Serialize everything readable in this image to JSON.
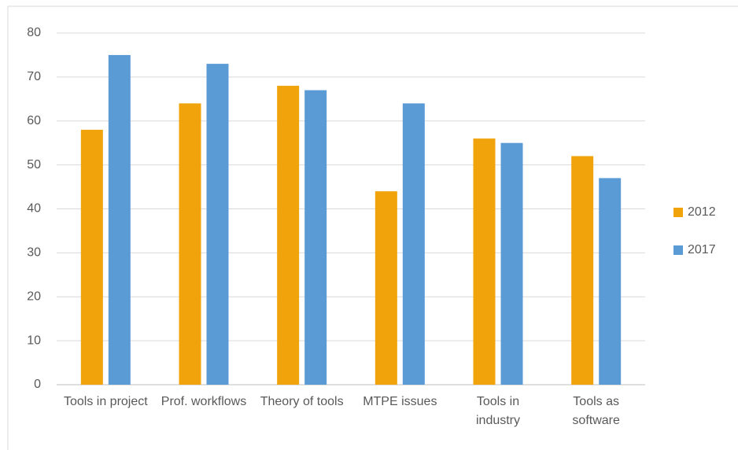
{
  "chart_data": {
    "type": "bar",
    "categories": [
      "Tools in project",
      "Prof. workflows",
      "Theory of tools",
      "MTPE issues",
      "Tools in industry",
      "Tools as software"
    ],
    "series": [
      {
        "name": "2012",
        "color": "#f0a30a",
        "values": [
          58,
          64,
          68,
          44,
          56,
          52
        ]
      },
      {
        "name": "2017",
        "color": "#5b9bd5",
        "values": [
          75,
          73,
          67,
          64,
          55,
          47
        ]
      }
    ],
    "ylim": [
      0,
      80
    ],
    "yticks": [
      0,
      10,
      20,
      30,
      40,
      50,
      60,
      70,
      80
    ],
    "grid": true,
    "legend": "right"
  }
}
